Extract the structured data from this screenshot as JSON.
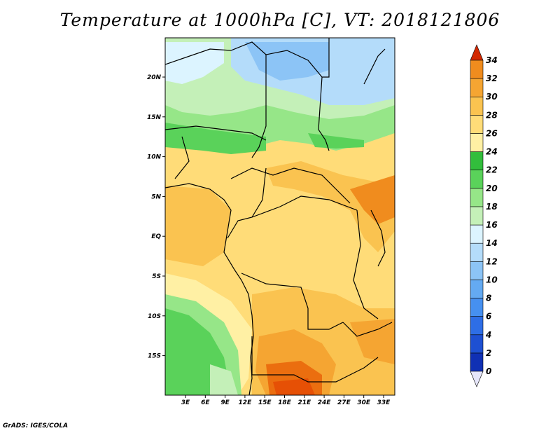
{
  "title": "Temperature at 1000hPa [C], VT: 2018121806",
  "credit": "GrADS: IGES/COLA",
  "map": {
    "lon_ticks": [
      "3E",
      "6E",
      "9E",
      "12E",
      "15E",
      "18E",
      "21E",
      "24E",
      "27E",
      "30E",
      "33E"
    ],
    "lat_ticks": [
      "20N",
      "15N",
      "10N",
      "5N",
      "EQ",
      "5S",
      "10S",
      "15S"
    ]
  },
  "colorbar": {
    "labels": [
      "0",
      "2",
      "4",
      "6",
      "8",
      "10",
      "12",
      "14",
      "16",
      "18",
      "20",
      "22",
      "24",
      "26",
      "28",
      "30",
      "32",
      "34"
    ],
    "colors": [
      "#0a0a6e",
      "#1030b4",
      "#1e50d2",
      "#2e6ee6",
      "#4690f0",
      "#64aaf2",
      "#8cc4f6",
      "#b4dcfa",
      "#dcf4ff",
      "#c4f0b8",
      "#96e688",
      "#5ad25a",
      "#32be3c",
      "#fff0a4",
      "#ffdc78",
      "#fac350",
      "#f5a532",
      "#f08c1e",
      "#eb6e0f",
      "#e65005",
      "#d22800"
    ]
  },
  "colors": {
    "hot": "#e65005",
    "warm": "#f5a532",
    "mild": "#ffdc78",
    "cool_green": "#5ad25a",
    "cold_blue": "#8cc4f6"
  }
}
